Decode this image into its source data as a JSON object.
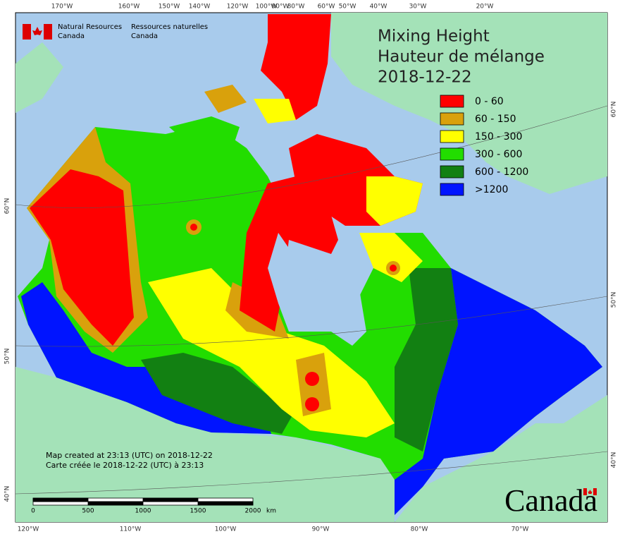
{
  "header": {
    "nrcan_en": [
      "Natural Resources",
      "Canada"
    ],
    "nrcan_fr": [
      "Ressources naturelles",
      "Canada"
    ]
  },
  "title": [
    "Mixing Height",
    "Hauteur de mélange",
    "2018-12-22"
  ],
  "legend": [
    {
      "label": "0 - 60",
      "color": "#ff0000"
    },
    {
      "label": "60 - 150",
      "color": "#d9a10c"
    },
    {
      "label": "150 - 300",
      "color": "#ffff00"
    },
    {
      "label": "300 - 600",
      "color": "#22dd00"
    },
    {
      "label": "600 - 1200",
      "color": "#128012"
    },
    {
      "label": ">1200",
      "color": "#0014ff"
    }
  ],
  "top_lon_labels": [
    "170°W",
    "160°W",
    "150°W",
    "140°W",
    "120°W",
    "100°W",
    "90°W",
    "80°W",
    "60°W",
    "50°W",
    "40°W",
    "30°W",
    "20°W"
  ],
  "bottom_lon_labels": [
    "120°W",
    "110°W",
    "100°W",
    "90°W",
    "80°W",
    "70°W"
  ],
  "left_lat_labels": [
    "60°N",
    "50°N",
    "40°N"
  ],
  "right_lat_labels": [
    "60°N",
    "50°N",
    "40°N"
  ],
  "footer": [
    "Map created at 23:13 (UTC) on 2018-12-22",
    "Carte créée le 2018-12-22 (UTC) à 23:13"
  ],
  "scale": {
    "labels": [
      "0",
      "500",
      "1000",
      "1500",
      "2000"
    ],
    "unit": "km"
  },
  "wordmark": "Canada"
}
